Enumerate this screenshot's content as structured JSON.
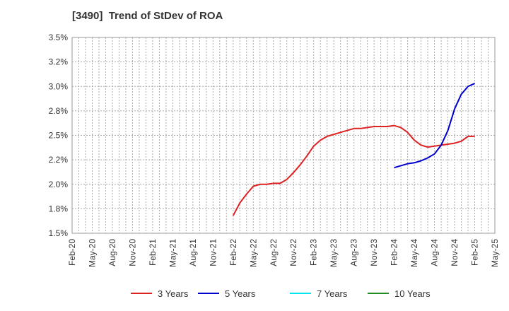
{
  "chart_data": {
    "type": "line",
    "title": "[3490]  Trend of StDev of ROA",
    "xlabel": "",
    "ylabel": "",
    "x_ticks": [
      "Feb-20",
      "May-20",
      "Aug-20",
      "Nov-20",
      "Feb-21",
      "May-21",
      "Aug-21",
      "Nov-21",
      "Feb-22",
      "May-22",
      "Aug-22",
      "Nov-22",
      "Feb-23",
      "May-23",
      "Aug-23",
      "Nov-23",
      "Feb-24",
      "May-24",
      "Aug-24",
      "Nov-24",
      "Feb-25",
      "May-25"
    ],
    "y_ticks": [
      "1.5%",
      "1.8%",
      "2.0%",
      "2.2%",
      "2.5%",
      "2.8%",
      "3.0%",
      "3.2%",
      "3.5%"
    ],
    "ylim": [
      1.5,
      3.5
    ],
    "grid": true,
    "legend_position": "bottom",
    "series": [
      {
        "name": "3 Years",
        "color": "#dd2222",
        "points": [
          [
            "Feb-22",
            1.68
          ],
          [
            "Mar-22",
            1.81
          ],
          [
            "Apr-22",
            1.9
          ],
          [
            "May-22",
            1.98
          ],
          [
            "Jun-22",
            2.0
          ],
          [
            "Jul-22",
            2.0
          ],
          [
            "Aug-22",
            2.01
          ],
          [
            "Sep-22",
            2.01
          ],
          [
            "Oct-22",
            2.05
          ],
          [
            "Nov-22",
            2.12
          ],
          [
            "Dec-22",
            2.2
          ],
          [
            "Jan-23",
            2.29
          ],
          [
            "Feb-23",
            2.39
          ],
          [
            "Mar-23",
            2.45
          ],
          [
            "Apr-23",
            2.49
          ],
          [
            "May-23",
            2.51
          ],
          [
            "Jun-23",
            2.53
          ],
          [
            "Jul-23",
            2.55
          ],
          [
            "Aug-23",
            2.57
          ],
          [
            "Sep-23",
            2.57
          ],
          [
            "Oct-23",
            2.58
          ],
          [
            "Nov-23",
            2.59
          ],
          [
            "Dec-23",
            2.59
          ],
          [
            "Jan-24",
            2.59
          ],
          [
            "Feb-24",
            2.6
          ],
          [
            "Mar-24",
            2.58
          ],
          [
            "Apr-24",
            2.53
          ],
          [
            "May-24",
            2.45
          ],
          [
            "Jun-24",
            2.4
          ],
          [
            "Jul-24",
            2.38
          ],
          [
            "Aug-24",
            2.39
          ],
          [
            "Sep-24",
            2.4
          ],
          [
            "Oct-24",
            2.41
          ],
          [
            "Nov-24",
            2.42
          ],
          [
            "Dec-24",
            2.44
          ],
          [
            "Jan-25",
            2.49
          ],
          [
            "Feb-25",
            2.49
          ]
        ]
      },
      {
        "name": "5 Years",
        "color": "#0000cc",
        "points": [
          [
            "Feb-24",
            2.17
          ],
          [
            "Mar-24",
            2.19
          ],
          [
            "Apr-24",
            2.21
          ],
          [
            "May-24",
            2.22
          ],
          [
            "Jun-24",
            2.24
          ],
          [
            "Jul-24",
            2.27
          ],
          [
            "Aug-24",
            2.31
          ],
          [
            "Sep-24",
            2.4
          ],
          [
            "Oct-24",
            2.55
          ],
          [
            "Nov-24",
            2.77
          ],
          [
            "Dec-24",
            2.92
          ],
          [
            "Jan-25",
            3.0
          ],
          [
            "Feb-25",
            3.03
          ]
        ]
      },
      {
        "name": "7 Years",
        "color": "#00e5ee",
        "points": []
      },
      {
        "name": "10 Years",
        "color": "#228b22",
        "points": []
      }
    ]
  }
}
